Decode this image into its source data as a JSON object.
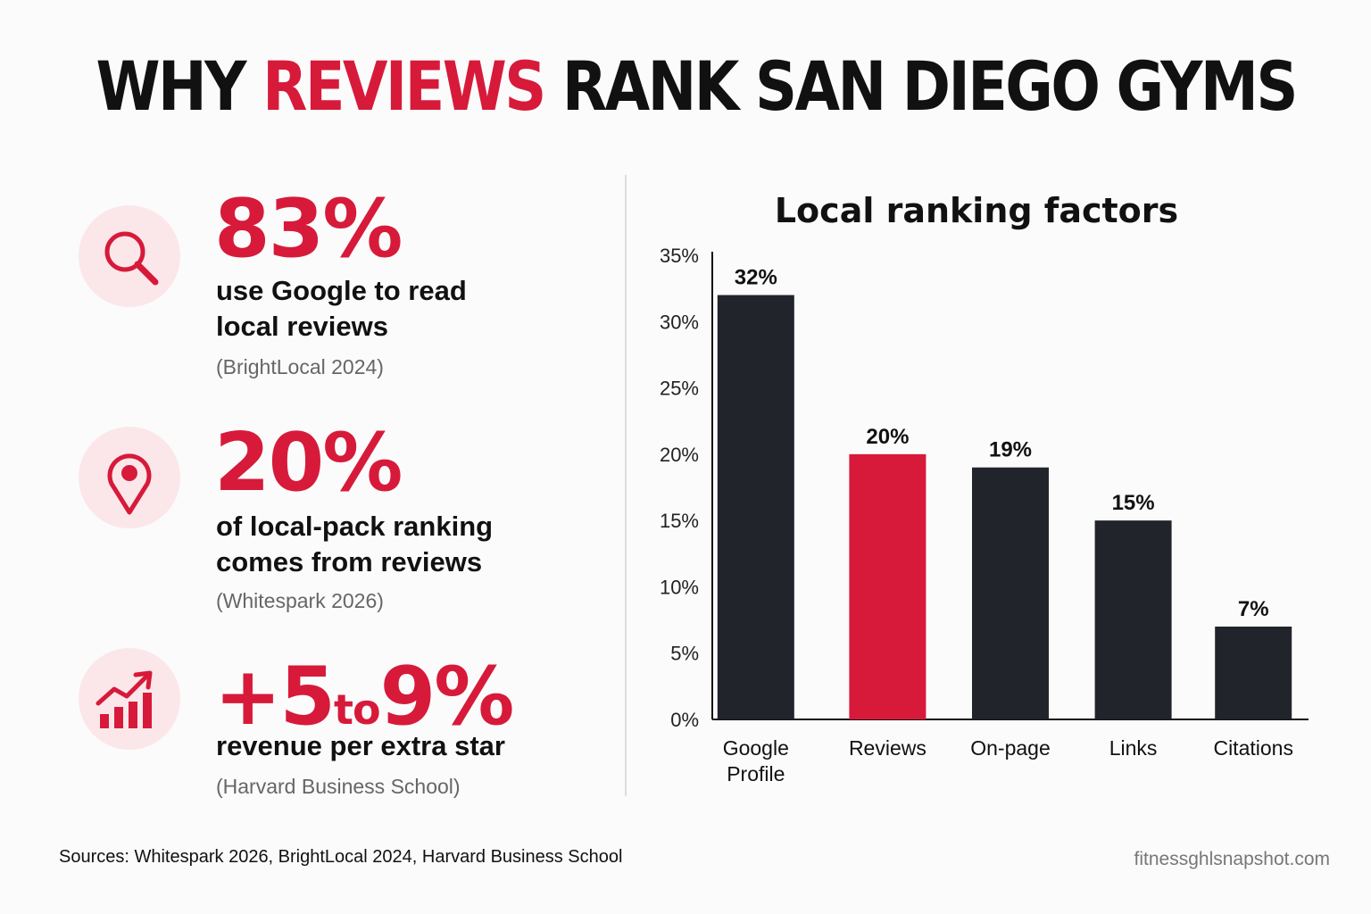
{
  "title": {
    "part1": "WHY ",
    "accent": "REVIEWS",
    "part2": " RANK SAN DIEGO GYMS"
  },
  "stats": [
    {
      "icon": "search-icon",
      "value": "83%",
      "desc_line1": "use Google to read",
      "desc_line2": "local reviews",
      "source": "(BrightLocal 2024)"
    },
    {
      "icon": "location-pin-icon",
      "value": "20%",
      "desc_line1": "of local-pack ranking",
      "desc_line2": "comes from reviews",
      "source": "(Whitespark 2026)"
    },
    {
      "icon": "trending-up-chart-icon",
      "value_prefix": "+5",
      "value_to": "to",
      "value_suffix": "9%",
      "desc_line1": "revenue per extra star",
      "source": "(Harvard Business School)"
    }
  ],
  "chart_data": {
    "type": "bar",
    "title": "Local ranking factors",
    "categories": [
      "Google Profile",
      "Reviews",
      "On-page",
      "Links",
      "Citations"
    ],
    "category_lines": [
      [
        "Google",
        "Profile"
      ],
      [
        "Reviews"
      ],
      [
        "On-page"
      ],
      [
        "Links"
      ],
      [
        "Citations"
      ]
    ],
    "values": [
      32,
      20,
      19,
      15,
      7
    ],
    "data_labels": [
      "32%",
      "20%",
      "19%",
      "15%",
      "7%"
    ],
    "highlight_index": 1,
    "ylim": [
      0,
      35
    ],
    "yticks": [
      0,
      5,
      10,
      15,
      20,
      25,
      30,
      35
    ],
    "ytick_labels": [
      "0%",
      "5%",
      "10%",
      "15%",
      "20%",
      "25%",
      "30%",
      "35%"
    ],
    "xlabel": "",
    "ylabel": "",
    "grid": false,
    "colors": {
      "default": "#22242b",
      "highlight": "#d71a3a"
    }
  },
  "footer": {
    "sources": "Sources: Whitespark 2026, BrightLocal 2024, Harvard Business School",
    "site": "fitnessghlsnapshot.com"
  },
  "colors": {
    "accent": "#d71a3a",
    "dark": "#111111",
    "icon_bg": "#fbe7ea"
  }
}
